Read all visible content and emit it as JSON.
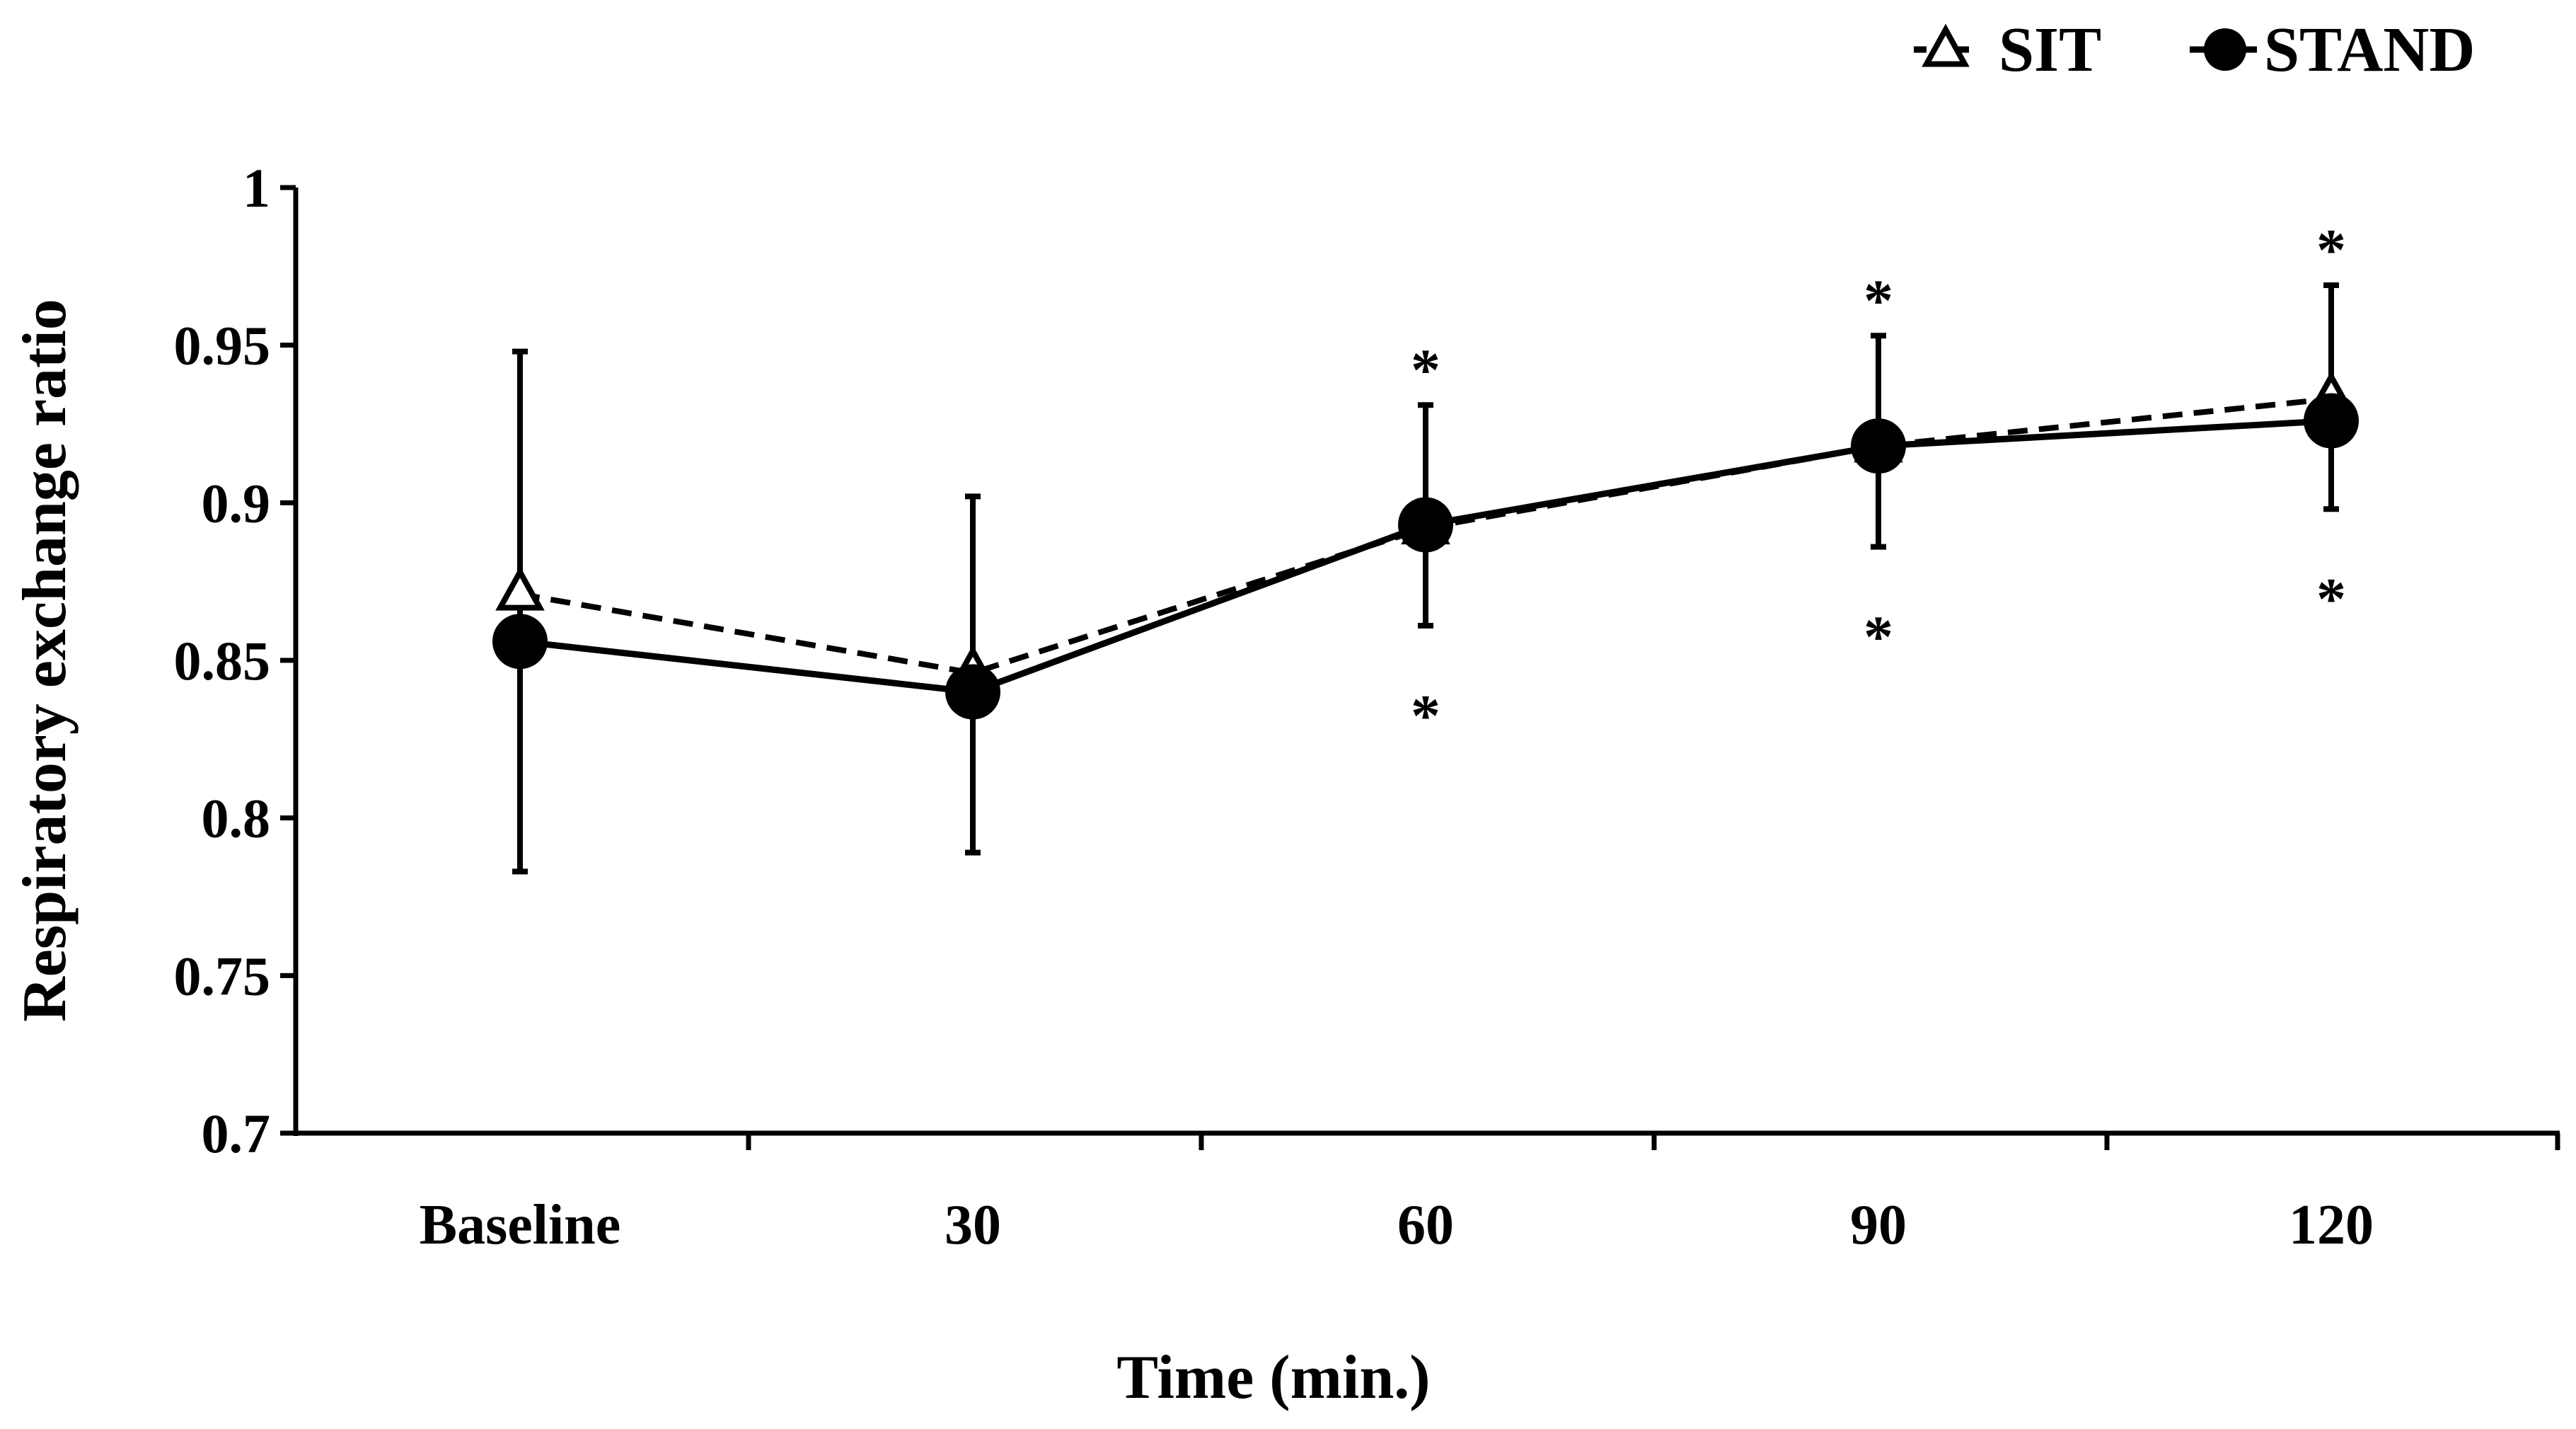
{
  "chart_data": {
    "type": "line",
    "title": "",
    "xlabel": "Time (min.)",
    "ylabel": "Respiratory exchange ratio",
    "categories": [
      "Baseline",
      "30",
      "60",
      "90",
      "120"
    ],
    "ylim": [
      0.7,
      1.0
    ],
    "yticks": [
      0.7,
      0.75,
      0.8,
      0.85,
      0.9,
      0.95,
      1.0
    ],
    "ytick_labels": [
      "0.7",
      "0.75",
      "0.8",
      "0.85",
      "0.9",
      "0.95",
      "1"
    ],
    "grid": false,
    "legend_position": "top-right",
    "series": [
      {
        "name": "SIT",
        "marker": "open-triangle",
        "line_style": "dashed",
        "values": [
          0.871,
          0.846,
          0.892,
          0.918,
          0.933
        ],
        "error_up": [
          null,
          null,
          null,
          null,
          null
        ],
        "error_down": [
          null,
          null,
          null,
          null,
          null
        ],
        "sig_marks": [
          "",
          "",
          "*",
          "*",
          "*"
        ],
        "sig_placement": "above"
      },
      {
        "name": "STAND",
        "marker": "filled-circle",
        "line_style": "solid",
        "values": [
          0.856,
          0.84,
          0.893,
          0.918,
          0.926
        ],
        "error_up": [
          0.948,
          0.902,
          0.931,
          0.953,
          0.969
        ],
        "error_down": [
          0.783,
          0.789,
          0.861,
          0.886,
          0.898
        ],
        "sig_marks": [
          "",
          "",
          "*",
          "*",
          "*"
        ],
        "sig_placement": "below"
      }
    ]
  }
}
